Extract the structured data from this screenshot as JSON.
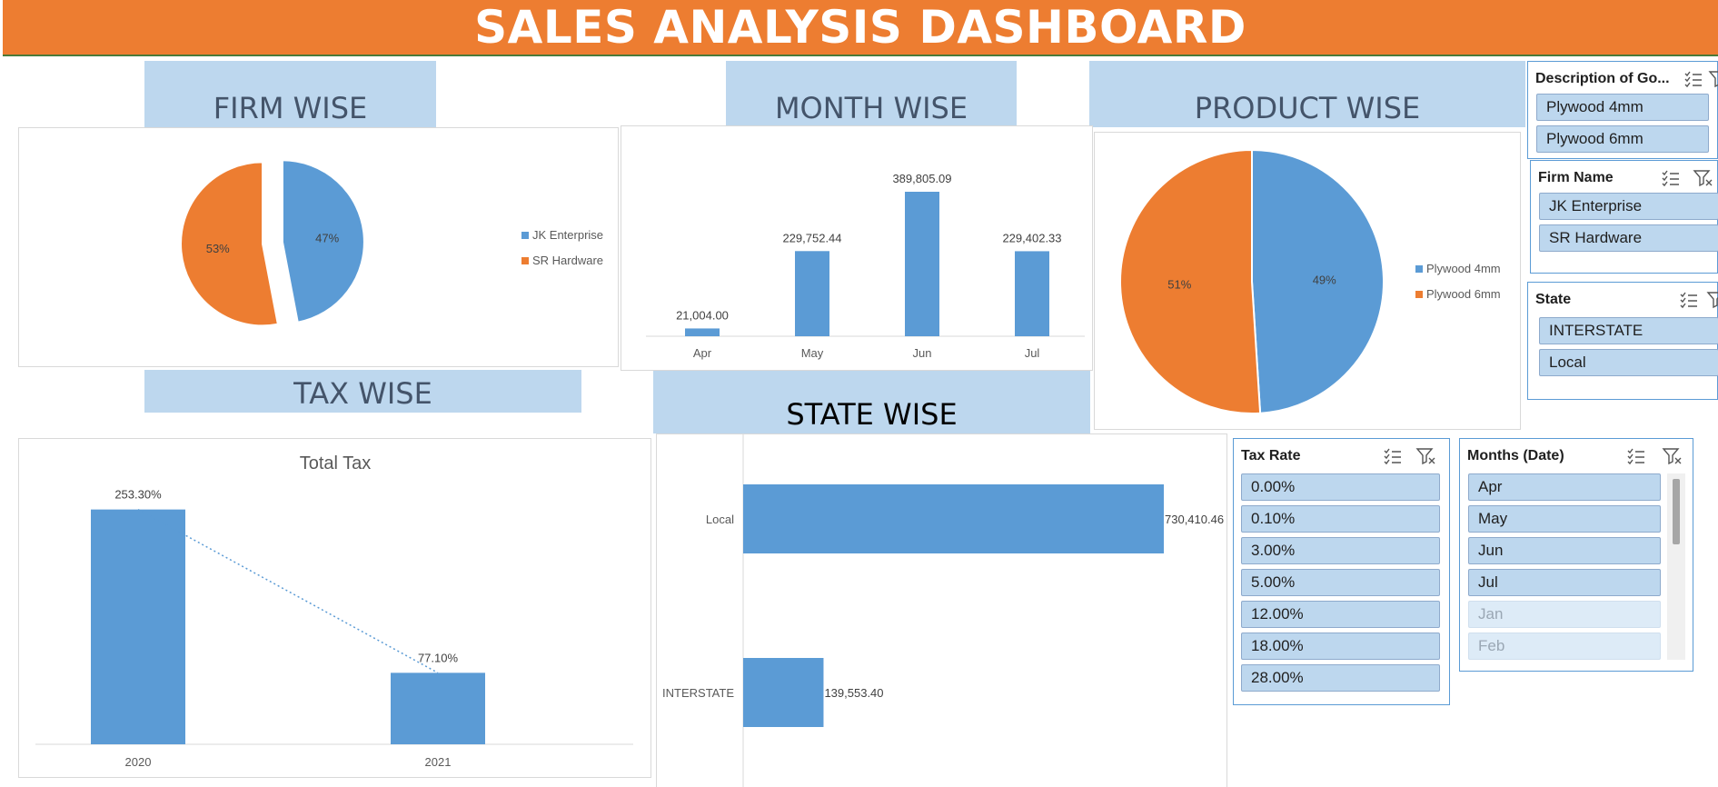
{
  "dashboard_title": "SALES ANALYSIS DASHBOARD",
  "sections": {
    "firm": "FIRM WISE",
    "month": "MONTH WISE",
    "product": "PRODUCT WISE",
    "tax": "TAX WISE",
    "state": "STATE WISE"
  },
  "colors": {
    "blue": "#5B9BD5",
    "orange": "#ED7D31",
    "banner": "#ED7D31",
    "section_bg": "#BDD7EE"
  },
  "chart_data": [
    {
      "id": "firm",
      "type": "pie",
      "title": "",
      "labels": [
        "JK Enterprise",
        "SR Hardware"
      ],
      "values": [
        47,
        53
      ],
      "data_labels": [
        "47%",
        "53%"
      ],
      "colors": [
        "#5B9BD5",
        "#ED7D31"
      ],
      "exploded": true,
      "legend": "right"
    },
    {
      "id": "month",
      "type": "bar",
      "title": "",
      "categories": [
        "Apr",
        "May",
        "Jun",
        "Jul"
      ],
      "values": [
        21004.0,
        229752.44,
        389805.09,
        229402.33
      ],
      "data_labels": [
        "21,004.00",
        "229,752.44",
        "389,805.09",
        "229,402.33"
      ],
      "color": "#5B9BD5",
      "grid": false
    },
    {
      "id": "product",
      "type": "pie",
      "title": "",
      "labels": [
        "Plywood 4mm",
        "Plywood 6mm"
      ],
      "values": [
        49,
        51
      ],
      "data_labels": [
        "49%",
        "51%"
      ],
      "colors": [
        "#5B9BD5",
        "#ED7D31"
      ],
      "legend": "right"
    },
    {
      "id": "tax",
      "type": "bar",
      "title": "Total Tax",
      "categories": [
        "2020",
        "2021"
      ],
      "values": [
        253.3,
        77.1
      ],
      "data_labels": [
        "253.30%",
        "77.10%"
      ],
      "color": "#5B9BD5",
      "trendline": "dotted",
      "grid": false
    },
    {
      "id": "state",
      "type": "bar",
      "orientation": "horizontal",
      "title": "",
      "categories": [
        "Local",
        "INTERSTATE"
      ],
      "values": [
        730410.46,
        139553.4
      ],
      "data_labels": [
        "730,410.46",
        "139,553.40"
      ],
      "color": "#5B9BD5",
      "grid": false
    }
  ],
  "slicers": {
    "description": {
      "title": "Description of Go...",
      "items": [
        "Plywood 4mm",
        "Plywood 6mm"
      ]
    },
    "firm": {
      "title": "Firm Name",
      "items": [
        "JK Enterprise",
        "SR Hardware"
      ]
    },
    "state": {
      "title": "State",
      "items": [
        "INTERSTATE",
        "Local"
      ]
    },
    "tax_rate": {
      "title": "Tax Rate",
      "items": [
        "0.00%",
        "0.10%",
        "3.00%",
        "5.00%",
        "12.00%",
        "18.00%",
        "28.00%"
      ]
    },
    "months": {
      "title": "Months (Date)",
      "items": [
        "Apr",
        "May",
        "Jun",
        "Jul"
      ],
      "dim_items": [
        "Jan",
        "Feb"
      ]
    }
  }
}
